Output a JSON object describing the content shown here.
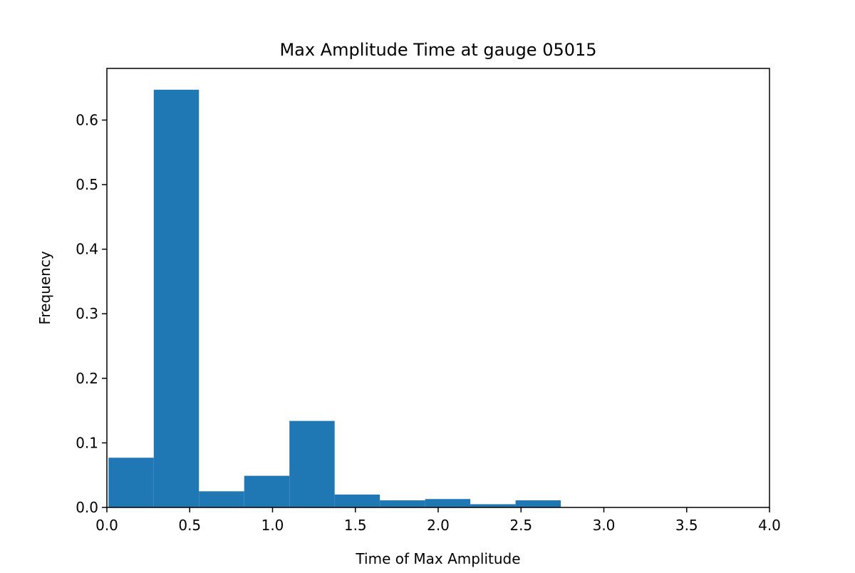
{
  "chart_data": {
    "type": "bar",
    "subtype": "histogram",
    "title": "Max Amplitude Time at gauge 05015",
    "xlabel": "Time of Max Amplitude",
    "ylabel": "Frequency",
    "xlim": [
      0.0,
      4.0
    ],
    "ylim": [
      0.0,
      0.68
    ],
    "x_ticks": [
      "0.0",
      "0.5",
      "1.0",
      "1.5",
      "2.0",
      "2.5",
      "3.0",
      "3.5",
      "4.0"
    ],
    "y_ticks": [
      "0.0",
      "0.1",
      "0.2",
      "0.3",
      "0.4",
      "0.5",
      "0.6"
    ],
    "bin_edges": [
      0.01,
      0.283,
      0.556,
      0.829,
      1.102,
      1.375,
      1.648,
      1.921,
      2.194,
      2.467,
      2.74
    ],
    "values": [
      0.077,
      0.647,
      0.025,
      0.049,
      0.134,
      0.02,
      0.011,
      0.013,
      0.005,
      0.011
    ],
    "grid": false,
    "legend": "none",
    "bar_color": "#1f77b4"
  }
}
